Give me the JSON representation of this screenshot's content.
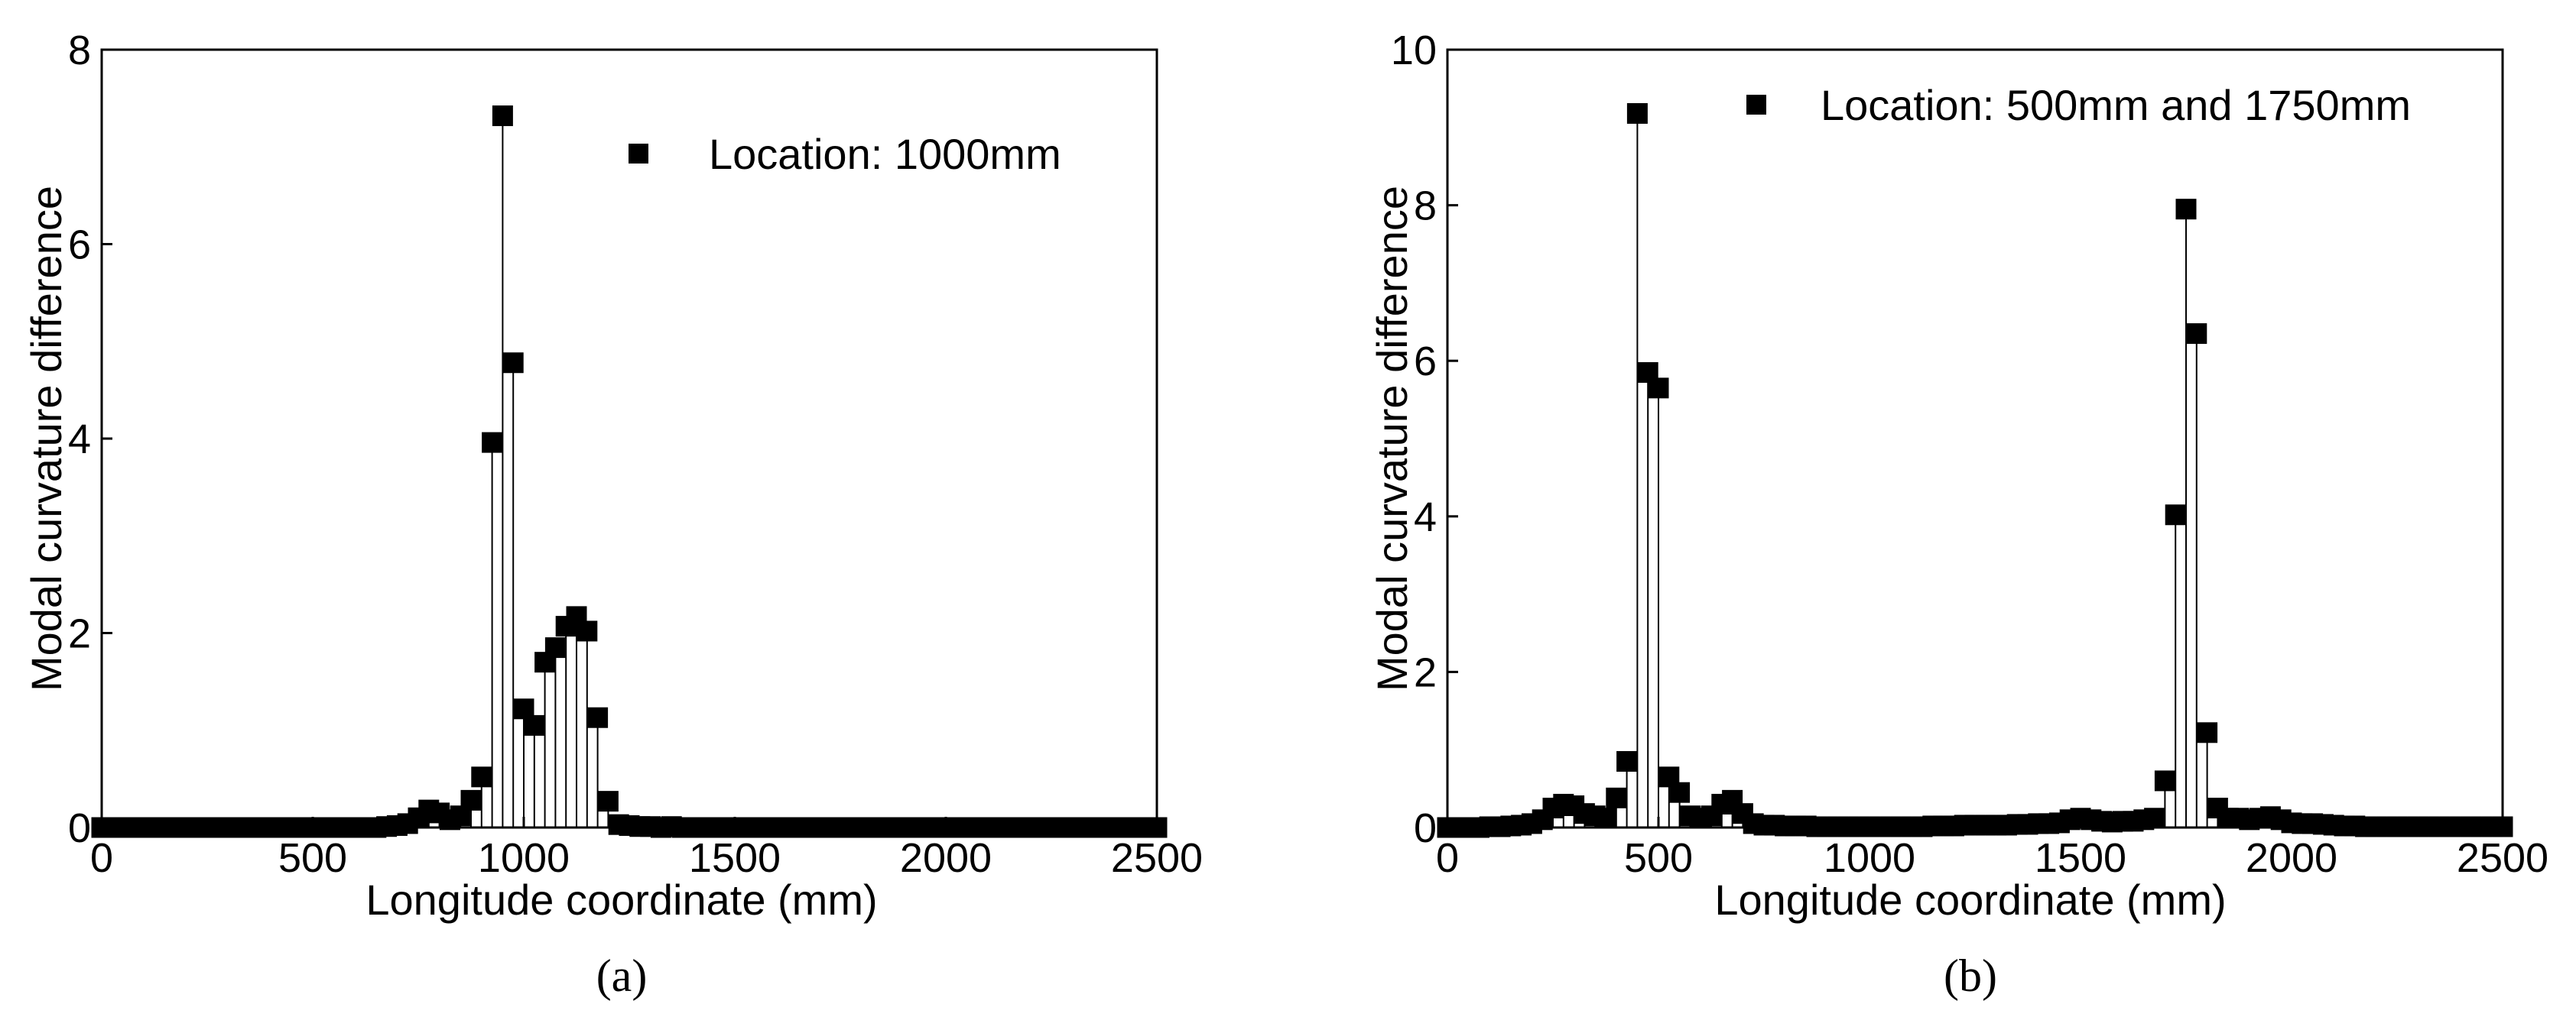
{
  "chart_data": [
    {
      "type": "scatter",
      "panel_label": "(a)",
      "xlabel": "Longitude coordinate (mm)",
      "ylabel": "Modal curvature difference",
      "xlim": [
        0,
        2500
      ],
      "ylim": [
        0,
        8
      ],
      "xticks": [
        0,
        500,
        1000,
        1500,
        2000,
        2500
      ],
      "yticks": [
        0,
        2,
        4,
        6,
        8
      ],
      "grid": false,
      "legend_position": "top-right",
      "series": [
        {
          "name": "Location: 1000mm",
          "marker": "square",
          "drop_lines": true,
          "x": [
            0,
            25,
            50,
            75,
            100,
            125,
            150,
            175,
            200,
            225,
            250,
            275,
            300,
            325,
            350,
            375,
            400,
            425,
            450,
            475,
            500,
            525,
            550,
            575,
            600,
            625,
            650,
            675,
            700,
            725,
            750,
            775,
            800,
            825,
            850,
            875,
            900,
            925,
            950,
            975,
            1000,
            1025,
            1050,
            1075,
            1100,
            1125,
            1150,
            1175,
            1200,
            1225,
            1250,
            1275,
            1300,
            1325,
            1350,
            1375,
            1400,
            1425,
            1450,
            1475,
            1500,
            1525,
            1550,
            1575,
            1600,
            1625,
            1650,
            1675,
            1700,
            1725,
            1750,
            1775,
            1800,
            1825,
            1850,
            1875,
            1900,
            1925,
            1950,
            1975,
            2000,
            2025,
            2050,
            2075,
            2100,
            2125,
            2150,
            2175,
            2200,
            2225,
            2250,
            2275,
            2300,
            2325,
            2350,
            2375,
            2400,
            2425,
            2450,
            2475,
            2500
          ],
          "y": [
            0,
            0,
            0,
            0,
            0,
            0,
            0,
            0,
            0,
            0,
            0,
            0,
            0,
            0,
            0,
            0,
            0,
            0,
            0,
            0,
            0,
            0,
            0,
            0,
            0,
            0,
            0,
            0.01,
            0.02,
            0.04,
            0.1,
            0.18,
            0.15,
            0.08,
            0.12,
            0.28,
            0.52,
            3.96,
            7.32,
            4.78,
            1.22,
            1.05,
            1.7,
            1.85,
            2.07,
            2.17,
            2.02,
            1.13,
            0.27,
            0.03,
            0.02,
            0.01,
            0.01,
            0,
            0.01,
            0,
            0,
            0,
            0,
            0,
            0,
            0,
            0,
            0,
            0,
            0,
            0,
            0,
            0,
            0,
            0,
            0,
            0,
            0,
            0,
            0,
            0,
            0,
            0,
            0,
            0,
            0,
            0,
            0,
            0,
            0,
            0,
            0,
            0,
            0,
            0,
            0,
            0,
            0,
            0,
            0,
            0,
            0,
            0,
            0,
            0
          ]
        }
      ]
    },
    {
      "type": "scatter",
      "panel_label": "(b)",
      "xlabel": "Longitude coordinate (mm)",
      "ylabel": "Modal curvature difference",
      "xlim": [
        0,
        2500
      ],
      "ylim": [
        0,
        10
      ],
      "xticks": [
        0,
        500,
        1000,
        1500,
        2000,
        2500
      ],
      "yticks": [
        0,
        2,
        4,
        6,
        8,
        10
      ],
      "grid": false,
      "legend_position": "top-right",
      "series": [
        {
          "name": "Location: 500mm and 1750mm",
          "marker": "square",
          "drop_lines": true,
          "x": [
            0,
            25,
            50,
            75,
            100,
            125,
            150,
            175,
            200,
            225,
            250,
            275,
            300,
            325,
            350,
            375,
            400,
            425,
            450,
            475,
            500,
            525,
            550,
            575,
            600,
            625,
            650,
            675,
            700,
            725,
            750,
            775,
            800,
            825,
            850,
            875,
            900,
            925,
            950,
            975,
            1000,
            1025,
            1050,
            1075,
            1100,
            1125,
            1150,
            1175,
            1200,
            1225,
            1250,
            1275,
            1300,
            1325,
            1350,
            1375,
            1400,
            1425,
            1450,
            1475,
            1500,
            1525,
            1550,
            1575,
            1600,
            1625,
            1650,
            1675,
            1700,
            1725,
            1750,
            1775,
            1800,
            1825,
            1850,
            1875,
            1900,
            1925,
            1950,
            1975,
            2000,
            2025,
            2050,
            2075,
            2100,
            2125,
            2150,
            2175,
            2200,
            2225,
            2250,
            2275,
            2300,
            2325,
            2350,
            2375,
            2400,
            2425,
            2450,
            2475,
            2500
          ],
          "y": [
            0,
            0,
            0,
            0,
            0.01,
            0.01,
            0.02,
            0.03,
            0.05,
            0.1,
            0.25,
            0.3,
            0.28,
            0.18,
            0.15,
            0.12,
            0.38,
            0.85,
            9.18,
            5.85,
            5.65,
            0.65,
            0.45,
            0.15,
            0.12,
            0.15,
            0.3,
            0.35,
            0.18,
            0.05,
            0.03,
            0.03,
            0.02,
            0.02,
            0.02,
            0.01,
            0.01,
            0.01,
            0.01,
            0.01,
            0.01,
            0.01,
            0.01,
            0.01,
            0.01,
            0.01,
            0.02,
            0.02,
            0.02,
            0.03,
            0.03,
            0.03,
            0.03,
            0.03,
            0.04,
            0.04,
            0.05,
            0.05,
            0.06,
            0.1,
            0.12,
            0.1,
            0.08,
            0.07,
            0.08,
            0.08,
            0.1,
            0.12,
            0.6,
            4.02,
            7.95,
            6.35,
            1.22,
            0.25,
            0.12,
            0.12,
            0.1,
            0.12,
            0.14,
            0.1,
            0.06,
            0.05,
            0.05,
            0.04,
            0.03,
            0.02,
            0.02,
            0.01,
            0.01,
            0.01,
            0.01,
            0.01,
            0.01,
            0.01,
            0.01,
            0.01,
            0.01,
            0.01,
            0.01,
            0.01,
            0.01
          ]
        }
      ]
    }
  ]
}
